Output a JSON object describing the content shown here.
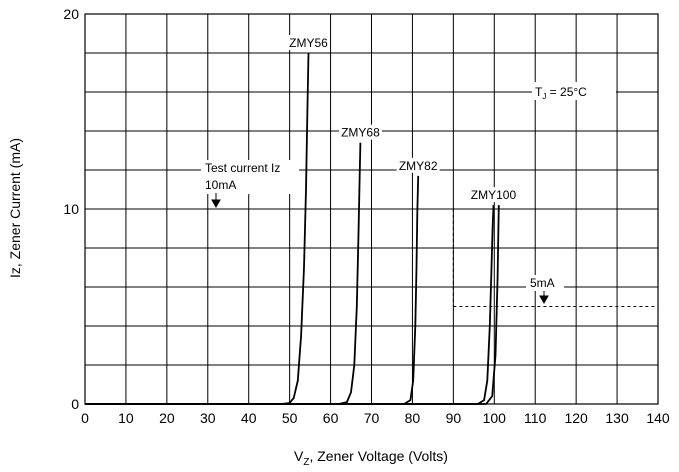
{
  "chart_data": {
    "type": "line",
    "xlabel_main": "V",
    "xlabel_sub": "Z",
    "xlabel_rest": ", Zener Voltage (Volts)",
    "ylabel": "Iz, Zener Current (mA)",
    "xlim": [
      0,
      140
    ],
    "ylim": [
      0,
      20
    ],
    "xticks": [
      0,
      10,
      20,
      30,
      40,
      50,
      60,
      70,
      80,
      90,
      100,
      110,
      120,
      130,
      140
    ],
    "yticks_labeled": [
      0,
      10,
      20
    ],
    "y_gridlines": [
      0,
      2,
      4,
      6,
      8,
      10,
      12,
      14,
      16,
      18,
      20
    ],
    "grid": true,
    "series": [
      {
        "name": "ZMY56",
        "x": [
          0,
          48,
          50,
          51,
          52,
          52.8,
          53.5,
          54,
          54.3,
          54.6
        ],
        "y": [
          0,
          0,
          0.05,
          0.3,
          1.2,
          3.5,
          7,
          11,
          14.5,
          18
        ]
      },
      {
        "name": "ZMY68",
        "x": [
          0,
          62,
          64,
          65,
          65.8,
          66.4,
          66.8,
          67.1,
          67.3
        ],
        "y": [
          0,
          0,
          0.1,
          0.6,
          2,
          5,
          8.5,
          11.5,
          13.4
        ]
      },
      {
        "name": "ZMY82",
        "x": [
          0,
          78,
          79.5,
          80.2,
          80.7,
          81,
          81.2,
          81.4
        ],
        "y": [
          0,
          0,
          0.2,
          1.2,
          4,
          7,
          9.8,
          11.7
        ]
      },
      {
        "name": "ZMY100",
        "x": [
          0,
          96,
          97.5,
          98.3,
          98.9,
          99.3,
          99.6,
          99.8
        ],
        "y": [
          0,
          0,
          0.2,
          1.2,
          4,
          6.8,
          9,
          10.2
        ]
      },
      {
        "name": "",
        "x": [
          0,
          98,
          99.5,
          100.3,
          100.8,
          101,
          101.1
        ],
        "y": [
          0,
          0,
          0.4,
          2.5,
          6.5,
          9,
          10.2
        ]
      }
    ],
    "reference_lines": [
      {
        "label": "10mA",
        "y": 10,
        "x_range": [
          0,
          90
        ]
      },
      {
        "label": "5mA",
        "y": 5,
        "x_range": [
          90,
          140
        ]
      }
    ],
    "annotations": {
      "test_current": "Test current Iz",
      "test_current_value": "10mA",
      "five_ma": "5mA",
      "tj_main": "T",
      "tj_sub": "J",
      "tj_rest": " = 25°C"
    }
  }
}
